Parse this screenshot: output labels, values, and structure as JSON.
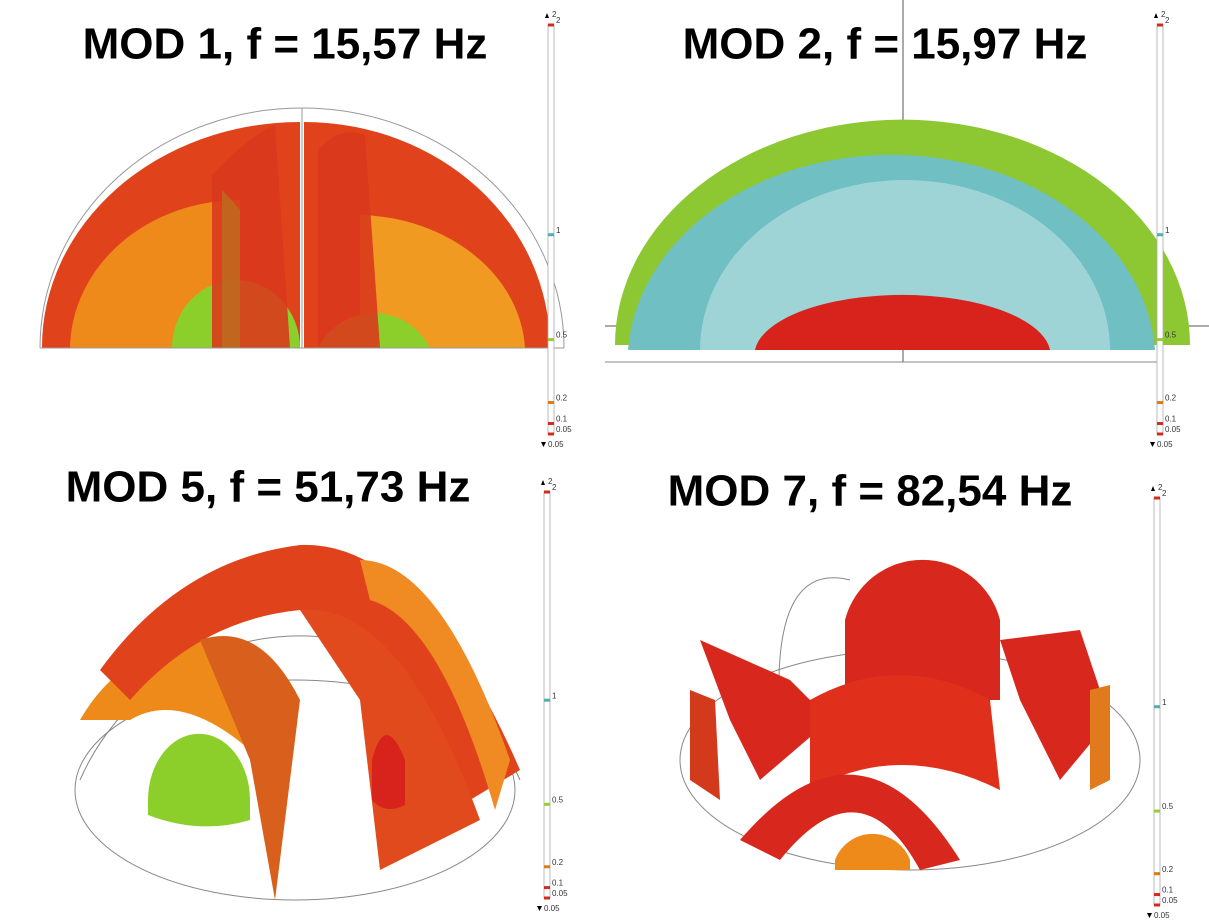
{
  "panels": [
    {
      "title": "MOD 1, f = 15,57 Hz",
      "colorbar": {
        "max": 2,
        "min": 0.05,
        "ticks": [
          2,
          1,
          0.5,
          0.2,
          0.1,
          0.05
        ],
        "tick_colors": [
          "#d42a1e",
          "#4fb0b0",
          "#9acd32",
          "#e07a10",
          "#d42a1e",
          "#d42a1e"
        ]
      }
    },
    {
      "title": "MOD 2, f = 15,97 Hz",
      "colorbar": {
        "max": 2,
        "min": 0.05,
        "ticks": [
          2,
          1,
          0.5,
          0.2,
          0.1,
          0.05
        ],
        "tick_colors": [
          "#d42a1e",
          "#4fb0b0",
          "#9acd32",
          "#e07a10",
          "#d42a1e",
          "#d42a1e"
        ]
      }
    },
    {
      "title": "MOD 5, f = 51,73 Hz",
      "colorbar": {
        "max": 2,
        "min": 0.05,
        "ticks": [
          2,
          1,
          0.5,
          0.2,
          0.1,
          0.05
        ],
        "tick_colors": [
          "#d42a1e",
          "#4fb0b0",
          "#9acd32",
          "#e07a10",
          "#d42a1e",
          "#d42a1e"
        ]
      }
    },
    {
      "title": "MOD 7, f = 82,54 Hz",
      "colorbar": {
        "max": 2,
        "min": 0.05,
        "ticks": [
          2,
          1,
          0.5,
          0.2,
          0.1,
          0.05
        ],
        "tick_colors": [
          "#d42a1e",
          "#4fb0b0",
          "#9acd32",
          "#e07a10",
          "#d42a1e",
          "#d42a1e"
        ]
      }
    }
  ]
}
